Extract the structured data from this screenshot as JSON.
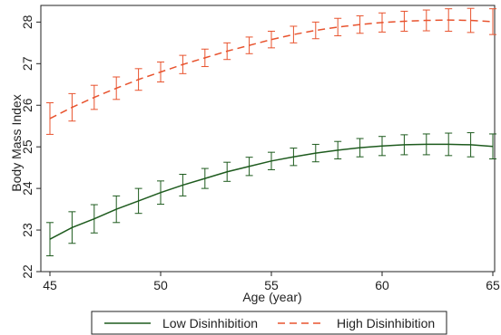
{
  "chart_data": {
    "type": "line",
    "xlabel": "Age (year)",
    "ylabel": "Body Mass Index",
    "xlim": [
      45,
      65
    ],
    "ylim": [
      22,
      28.4
    ],
    "xticks": [
      45,
      50,
      55,
      60,
      65
    ],
    "yticks": [
      22,
      23,
      24,
      25,
      26,
      27,
      28
    ],
    "grid": false,
    "legend_position": "bottom",
    "x": [
      45,
      46,
      47,
      48,
      49,
      50,
      51,
      52,
      53,
      54,
      55,
      56,
      57,
      58,
      59,
      60,
      61,
      62,
      63,
      64,
      65
    ],
    "series": [
      {
        "name": "Low Disinhibition",
        "color": "#1e5b1e",
        "line_style": "solid",
        "values": [
          22.78,
          23.06,
          23.27,
          23.5,
          23.7,
          23.9,
          24.08,
          24.24,
          24.4,
          24.53,
          24.66,
          24.76,
          24.85,
          24.92,
          24.98,
          25.02,
          25.05,
          25.06,
          25.06,
          25.05,
          25.01
        ],
        "lower": [
          22.38,
          22.68,
          22.93,
          23.18,
          23.4,
          23.62,
          23.82,
          24.0,
          24.17,
          24.31,
          24.45,
          24.55,
          24.64,
          24.71,
          24.76,
          24.79,
          24.81,
          24.81,
          24.79,
          24.76,
          24.71
        ],
        "upper": [
          23.18,
          23.44,
          23.61,
          23.82,
          24.0,
          24.18,
          24.34,
          24.48,
          24.63,
          24.75,
          24.87,
          24.97,
          25.06,
          25.13,
          25.2,
          25.25,
          25.29,
          25.31,
          25.33,
          25.34,
          25.31
        ]
      },
      {
        "name": "High Disinhibition",
        "color": "#e8532e",
        "line_style": "dashed",
        "values": [
          25.68,
          25.95,
          26.19,
          26.41,
          26.62,
          26.8,
          26.98,
          27.14,
          27.3,
          27.44,
          27.58,
          27.7,
          27.8,
          27.88,
          27.94,
          27.99,
          28.02,
          28.04,
          28.05,
          28.04,
          28.01
        ],
        "lower": [
          25.3,
          25.62,
          25.9,
          26.14,
          26.36,
          26.56,
          26.76,
          26.93,
          27.1,
          27.24,
          27.38,
          27.5,
          27.6,
          27.67,
          27.73,
          27.76,
          27.78,
          27.79,
          27.78,
          27.75,
          27.7
        ],
        "upper": [
          26.06,
          26.28,
          26.48,
          26.68,
          26.88,
          27.04,
          27.2,
          27.35,
          27.5,
          27.64,
          27.78,
          27.9,
          28.0,
          28.09,
          28.15,
          28.22,
          28.26,
          28.29,
          28.32,
          28.33,
          28.32
        ]
      }
    ]
  }
}
